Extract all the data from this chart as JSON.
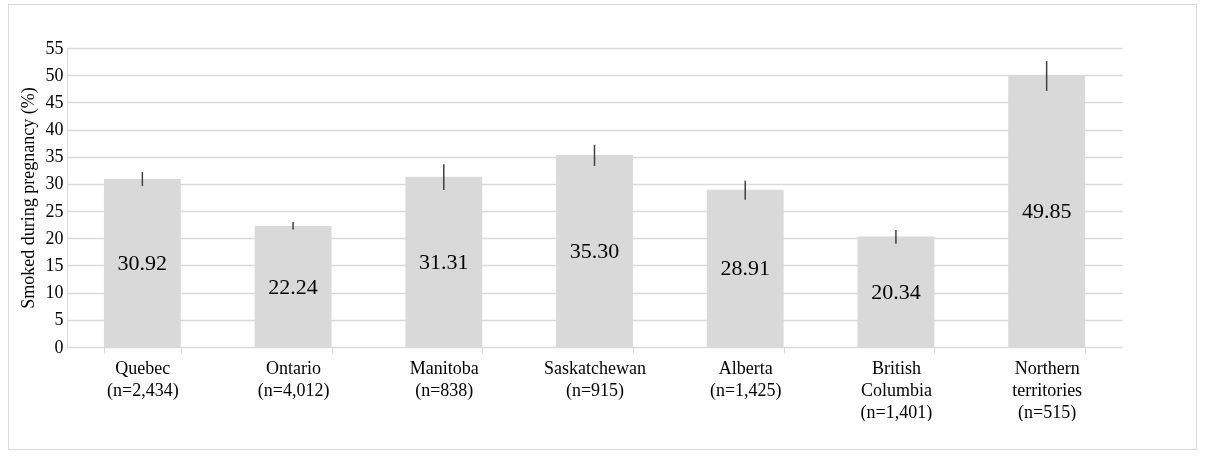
{
  "chart_data": {
    "type": "bar",
    "ylabel": "Smoked during pregnancy (%)",
    "categories": [
      "Quebec (n=2,434)",
      "Ontario (n=4,012)",
      "Manitoba (n=838)",
      "Saskatchewan (n=915)",
      "Alberta (n=1,425)",
      "British Columbia (n=1,401)",
      "Northern territories (n=515)"
    ],
    "values": [
      30.92,
      22.24,
      31.31,
      35.3,
      28.91,
      20.34,
      49.85
    ],
    "value_labels": [
      "30.92",
      "22.24",
      "31.31",
      "35.30",
      "28.91",
      "20.34",
      "49.85"
    ],
    "errors": [
      [
        29.6,
        32.2
      ],
      [
        21.6,
        23.0
      ],
      [
        28.9,
        33.6
      ],
      [
        33.3,
        37.2
      ],
      [
        27.1,
        30.6
      ],
      [
        19.0,
        21.5
      ],
      [
        47.1,
        52.6
      ]
    ],
    "color": "#d9d9d9",
    "ylim": [
      0,
      55
    ],
    "yticks": [
      0,
      5,
      10,
      15,
      20,
      25,
      30,
      35,
      40,
      45,
      50,
      55
    ],
    "grid": "y"
  }
}
